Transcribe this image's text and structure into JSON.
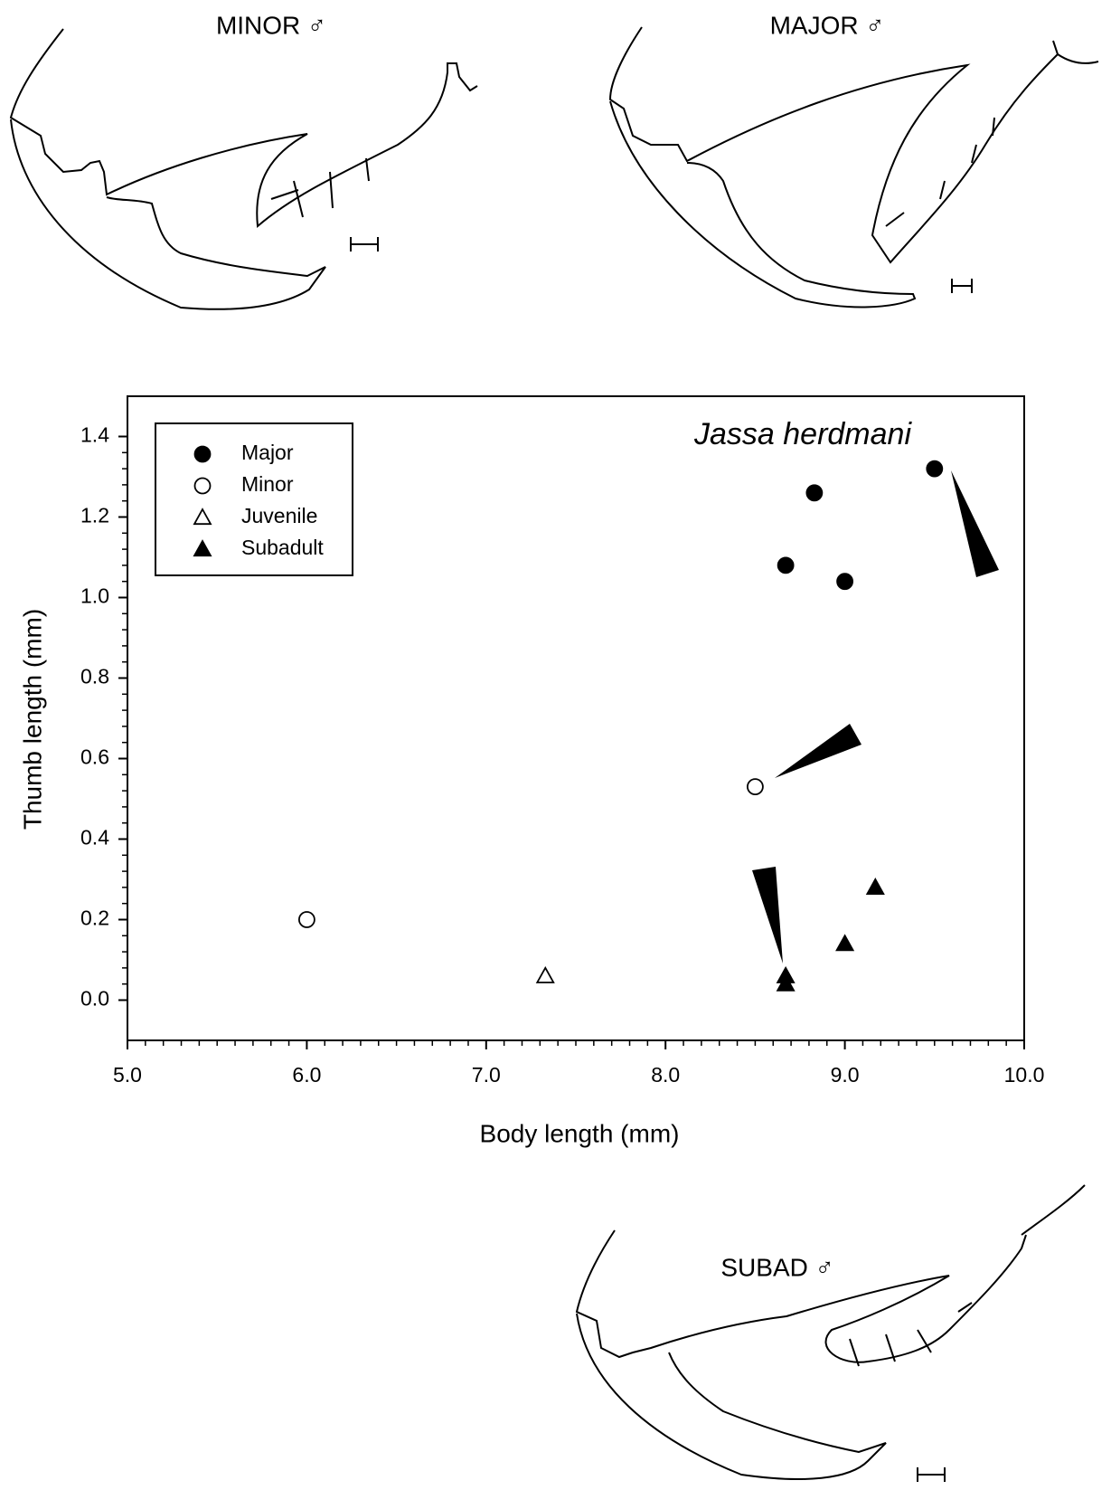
{
  "chart_data": {
    "type": "scatter",
    "title": "Jassa herdmani",
    "x_label": "Body length (mm)",
    "y_label": "Thumb length (mm)",
    "xlim": [
      5.0,
      10.0
    ],
    "ylim": [
      -0.1,
      1.5
    ],
    "xticks": [
      {
        "value": 5.0,
        "label": "5.0"
      },
      {
        "value": 6.0,
        "label": "6.0"
      },
      {
        "value": 7.0,
        "label": "7.0"
      },
      {
        "value": 8.0,
        "label": "8.0"
      },
      {
        "value": 9.0,
        "label": "9.0"
      },
      {
        "value": 10.0,
        "label": "10.0"
      }
    ],
    "yticks": [
      {
        "value": 0.0,
        "label": "0.0"
      },
      0.2,
      0.4,
      0.6,
      0.8,
      {
        "value": 1.0,
        "label": "1.0"
      },
      1.2,
      1.4
    ],
    "legend": "upper left",
    "series": [
      {
        "name": "Major",
        "marker": "circle",
        "filled": true,
        "color": "#000000",
        "x": [
          8.67,
          8.83,
          9.0,
          9.5
        ],
        "values": [
          1.08,
          1.26,
          1.04,
          1.32
        ]
      },
      {
        "name": "Minor",
        "marker": "circle",
        "filled": false,
        "color": "#000000",
        "x": [
          6.0,
          8.5
        ],
        "values": [
          0.2,
          0.53
        ]
      },
      {
        "name": "Juvenile",
        "marker": "triangle",
        "filled": false,
        "color": "#000000",
        "x": [
          7.33
        ],
        "values": [
          0.06
        ]
      },
      {
        "name": "Subadult",
        "marker": "triangle",
        "filled": true,
        "color": "#000000",
        "x": [
          8.67,
          8.67,
          9.0,
          9.17
        ],
        "values": [
          0.06,
          0.04,
          0.14,
          0.28
        ]
      }
    ]
  },
  "illustrations": [
    {
      "label": "MINOR ♂"
    },
    {
      "label": "MAJOR ♂"
    },
    {
      "label": "SUBAD ♂"
    }
  ]
}
